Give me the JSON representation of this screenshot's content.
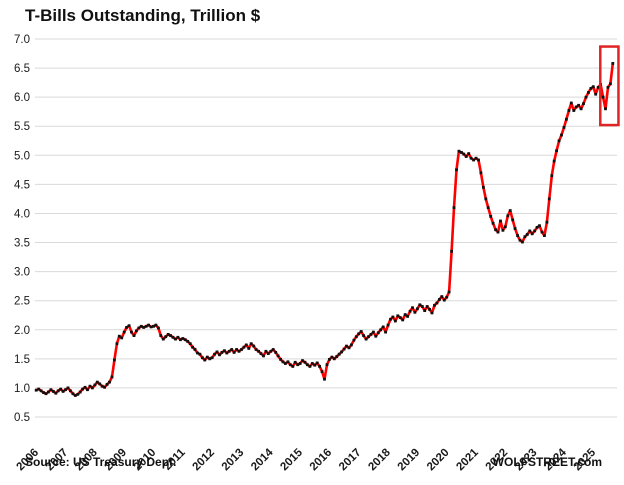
{
  "title": "T-Bills Outstanding, Trillion $",
  "footer": {
    "source": "Source: US Treasury Dept.",
    "brand": "WOLFSTREET.com"
  },
  "colors": {
    "line": "#ff0000",
    "marker": "#111111",
    "grid": "#d9d9d9",
    "text": "#1a1a1a",
    "annotation_box": "#e02424"
  },
  "chart_data": {
    "type": "line",
    "title": "T-Bills Outstanding, Trillion $",
    "ylabel": "Trillion $",
    "xlabel": "",
    "ylim": [
      0.5,
      7.0
    ],
    "y_ticks": [
      0.5,
      1.0,
      1.5,
      2.0,
      2.5,
      3.0,
      3.5,
      4.0,
      4.5,
      5.0,
      5.5,
      6.0,
      6.5,
      7.0
    ],
    "x_tick_labels": [
      "2006",
      "2007",
      "2008",
      "2009",
      "2010",
      "2011",
      "2012",
      "2013",
      "2014",
      "2015",
      "2016",
      "2017",
      "2018",
      "2019",
      "2020",
      "2021",
      "2022",
      "2023",
      "2024",
      "2025"
    ],
    "xlim_years": [
      2006.0,
      2025.85
    ],
    "grid": "horizontal",
    "legend": "none",
    "series": [
      {
        "name": "T-Bills Outstanding",
        "frequency": "monthly",
        "start_year": 2006,
        "start_month": 1,
        "color": "#ff0000",
        "marker": "black-square",
        "values": [
          0.96,
          0.98,
          0.95,
          0.92,
          0.9,
          0.93,
          0.97,
          0.94,
          0.91,
          0.95,
          0.98,
          0.94,
          0.97,
          1.0,
          0.95,
          0.9,
          0.87,
          0.89,
          0.93,
          0.98,
          1.01,
          0.97,
          1.03,
          1.0,
          1.05,
          1.1,
          1.07,
          1.03,
          1.01,
          1.06,
          1.1,
          1.19,
          1.48,
          1.76,
          1.89,
          1.86,
          1.96,
          2.04,
          2.07,
          1.96,
          1.9,
          1.98,
          2.03,
          2.06,
          2.04,
          2.06,
          2.08,
          2.05,
          2.06,
          2.08,
          2.03,
          1.9,
          1.84,
          1.88,
          1.92,
          1.9,
          1.87,
          1.84,
          1.87,
          1.83,
          1.85,
          1.83,
          1.8,
          1.76,
          1.7,
          1.66,
          1.6,
          1.58,
          1.52,
          1.48,
          1.53,
          1.5,
          1.52,
          1.58,
          1.62,
          1.57,
          1.61,
          1.64,
          1.6,
          1.63,
          1.66,
          1.61,
          1.66,
          1.63,
          1.66,
          1.7,
          1.74,
          1.68,
          1.76,
          1.72,
          1.66,
          1.63,
          1.59,
          1.55,
          1.63,
          1.59,
          1.63,
          1.66,
          1.61,
          1.55,
          1.49,
          1.45,
          1.42,
          1.45,
          1.4,
          1.37,
          1.44,
          1.4,
          1.42,
          1.47,
          1.44,
          1.4,
          1.37,
          1.42,
          1.39,
          1.43,
          1.37,
          1.28,
          1.15,
          1.4,
          1.49,
          1.53,
          1.5,
          1.54,
          1.58,
          1.62,
          1.67,
          1.72,
          1.69,
          1.74,
          1.82,
          1.88,
          1.93,
          1.97,
          1.9,
          1.84,
          1.88,
          1.92,
          1.96,
          1.89,
          1.95,
          2.0,
          2.05,
          1.96,
          2.08,
          2.18,
          2.22,
          2.15,
          2.24,
          2.21,
          2.17,
          2.26,
          2.23,
          2.32,
          2.38,
          2.3,
          2.36,
          2.43,
          2.4,
          2.33,
          2.4,
          2.35,
          2.29,
          2.42,
          2.46,
          2.52,
          2.57,
          2.51,
          2.56,
          2.65,
          3.35,
          4.1,
          4.75,
          5.07,
          5.05,
          5.02,
          4.98,
          5.03,
          4.95,
          4.92,
          4.95,
          4.92,
          4.7,
          4.45,
          4.25,
          4.1,
          3.95,
          3.83,
          3.72,
          3.68,
          3.87,
          3.71,
          3.77,
          3.96,
          4.05,
          3.89,
          3.74,
          3.62,
          3.54,
          3.51,
          3.6,
          3.64,
          3.7,
          3.65,
          3.7,
          3.76,
          3.79,
          3.68,
          3.62,
          3.85,
          4.25,
          4.65,
          4.9,
          5.08,
          5.25,
          5.35,
          5.48,
          5.62,
          5.77,
          5.9,
          5.77,
          5.83,
          5.86,
          5.8,
          5.89,
          6.0,
          6.08,
          6.15,
          6.18,
          6.05,
          6.17,
          6.22,
          6.0,
          5.8,
          6.17,
          6.23,
          6.58
        ]
      }
    ],
    "annotations": [
      {
        "type": "box",
        "color": "#e02424",
        "time_range": [
          2025.28,
          2025.9
        ],
        "value_range": [
          5.52,
          6.87
        ]
      }
    ]
  }
}
